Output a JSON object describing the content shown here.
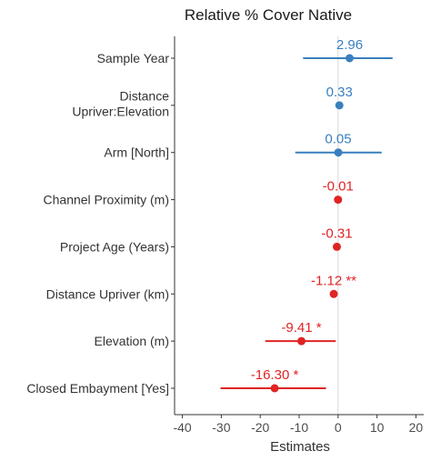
{
  "chart_data": {
    "type": "scatter",
    "title": "Relative % Cover Native",
    "xlabel": "Estimates",
    "ylabel": "",
    "xlim": [
      -42,
      22
    ],
    "xticks": [
      "-40",
      "-30",
      "-20",
      "-10",
      "0",
      "10",
      "20"
    ],
    "grid": false,
    "colors": {
      "positive": "#3a7fbf",
      "negative": "#e02424",
      "reference_line": "#d9d9d9"
    },
    "points": [
      {
        "term": "Sample Year",
        "estimate": 2.96,
        "ci": [
          -9,
          14
        ],
        "label": "2.96",
        "sign": "positive"
      },
      {
        "term": "Distance\nUpriver:Elevation",
        "estimate": 0.33,
        "ci": [
          0.33,
          0.33
        ],
        "label": "0.33",
        "sign": "positive"
      },
      {
        "term": "Arm [North]",
        "estimate": 0.05,
        "ci": [
          -11,
          11.2
        ],
        "label": "0.05",
        "sign": "positive"
      },
      {
        "term": "Channel Proximity (m)",
        "estimate": -0.01,
        "ci": [
          -0.01,
          -0.01
        ],
        "label": "-0.01",
        "sign": "negative"
      },
      {
        "term": "Project Age (Years)",
        "estimate": -0.31,
        "ci": [
          -0.31,
          -0.31
        ],
        "label": "-0.31",
        "sign": "negative"
      },
      {
        "term": "Distance Upriver (km)",
        "estimate": -1.12,
        "ci": [
          -1.12,
          -1.12
        ],
        "label": "-1.12 **",
        "sign": "negative"
      },
      {
        "term": "Elevation (m)",
        "estimate": -9.41,
        "ci": [
          -18.7,
          -0.6
        ],
        "label": "-9.41 *",
        "sign": "negative"
      },
      {
        "term": "Closed Embayment [Yes]",
        "estimate": -16.3,
        "ci": [
          -30.2,
          -3.1
        ],
        "label": "-16.30 *",
        "sign": "negative"
      }
    ]
  }
}
